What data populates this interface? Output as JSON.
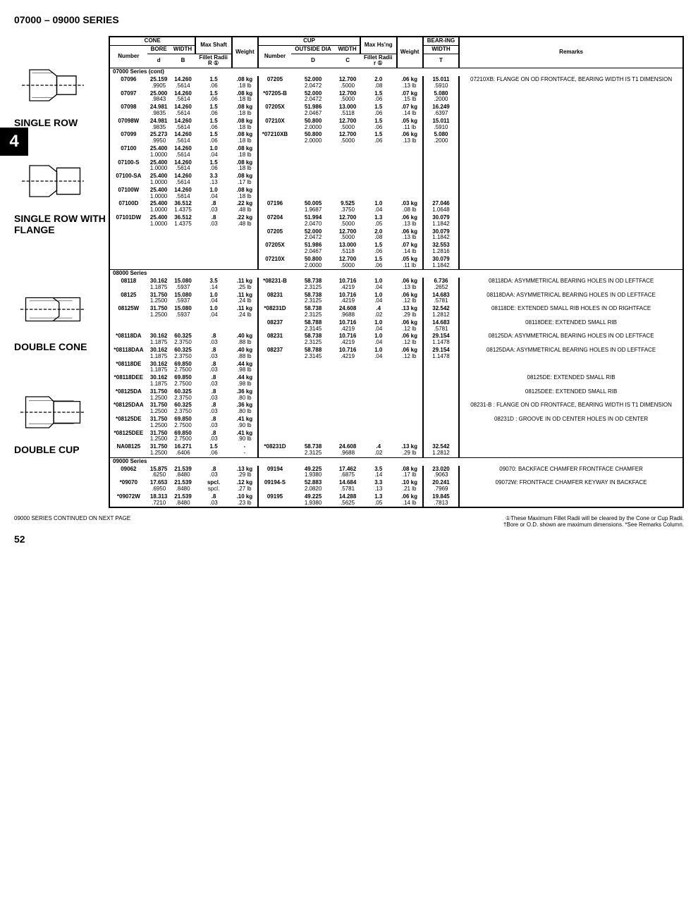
{
  "page": {
    "series_title": "07000 – 09000 SERIES",
    "tab_number": "4",
    "footer_left": "09000 SERIES CONTINUED ON NEXT PAGE",
    "footer_right": "①These Maximum Fillet Radii will be cleared by the Cone or Cup Radii.\n†Bore or O.D. shown are maximum dimensions.   *See Remarks Column.",
    "page_number": "52"
  },
  "sections": [
    {
      "label": "SINGLE ROW"
    },
    {
      "label": "SINGLE ROW WITH FLANGE"
    },
    {
      "label": "DOUBLE CONE"
    },
    {
      "label": "DOUBLE CUP"
    }
  ],
  "header": {
    "cone": "CONE",
    "cup": "CUP",
    "bear": "BEAR-ING",
    "remarks": "Remarks",
    "number": "Number",
    "bore": "BORE",
    "width": "WIDTH",
    "max_shaft": "Max Shaft",
    "fillet_radii": "Fillet Radii",
    "weight": "Weight",
    "outside_dia": "OUTSIDE DIA",
    "max_hsng": "Max Hs'ng",
    "d": "d",
    "B": "B",
    "R": "R ①",
    "D": "D",
    "C": "C",
    "r": "r ①",
    "T": "T"
  },
  "groups": [
    {
      "title": "07000 Series (cont)",
      "rows": [
        {
          "num": "07096",
          "d": "25.159",
          "d2": ".9905",
          "B": "14.260",
          "B2": ".5614",
          "R": "1.5",
          "R2": ".06",
          "w": ".08 kg",
          "w2": ".18 lb",
          "cup": "07205",
          "D": "52.000",
          "D2": "2.0472",
          "C": "12.700",
          "C2": ".5000",
          "r": "2.0",
          "r2": ".08",
          "cw": ".06 kg",
          "cw2": ".13 lb",
          "T": "15.011",
          "T2": ".5910",
          "rem": "07210XB: FLANGE ON OD FRONTFACE, BEARING WIDTH IS T1 DIMENSION"
        },
        {
          "num": "07097",
          "d": "25.000",
          "d2": ".9843",
          "B": "14.260",
          "B2": ".5614",
          "R": "1.5",
          "R2": ".06",
          "w": ".08 kg",
          "w2": ".18 lb",
          "cup": "*07205-B",
          "D": "52.000",
          "D2": "2.0472",
          "C": "12.700",
          "C2": ".5000",
          "r": "1.5",
          "r2": ".06",
          "cw": ".07 kg",
          "cw2": ".15 lb",
          "T": "5.080",
          "T2": ".2000",
          "rem": ""
        },
        {
          "num": "07098",
          "d": "24.981",
          "d2": ".9835",
          "B": "14.260",
          "B2": ".5614",
          "R": "1.5",
          "R2": ".06",
          "w": ".08 kg",
          "w2": ".18 lb",
          "cup": "07205X",
          "D": "51.986",
          "D2": "2.0467",
          "C": "13.000",
          "C2": ".5118",
          "r": "1.5",
          "r2": ".06",
          "cw": ".07 kg",
          "cw2": ".14 lb",
          "T": "16.249",
          "T2": ".6397",
          "rem": ""
        },
        {
          "num": "07098W",
          "d": "24.981",
          "d2": ".9835",
          "B": "14.260",
          "B2": ".5614",
          "R": "1.5",
          "R2": ".06",
          "w": ".08 kg",
          "w2": ".18 lb",
          "cup": "07210X",
          "D": "50.800",
          "D2": "2.0000",
          "C": "12.700",
          "C2": ".5000",
          "r": "1.5",
          "r2": ".06",
          "cw": ".05 kg",
          "cw2": ".11 lb",
          "T": "15.011",
          "T2": ".5910",
          "rem": ""
        },
        {
          "num": "07099",
          "d": "25.273",
          "d2": ".9950",
          "B": "14.260",
          "B2": ".5614",
          "R": "1.5",
          "R2": ".06",
          "w": ".08 kg",
          "w2": ".18 lb",
          "cup": "*07210XB",
          "D": "50.800",
          "D2": "2.0000",
          "C": "12.700",
          "C2": ".5000",
          "r": "1.5",
          "r2": ".06",
          "cw": ".06 kg",
          "cw2": ".13 lb",
          "T": "5.080",
          "T2": ".2000",
          "rem": ""
        },
        {
          "num": "07100",
          "d": "25.400",
          "d2": "1.0000",
          "B": "14.260",
          "B2": ".5614",
          "R": "1.0",
          "R2": ".04",
          "w": ".08 kg",
          "w2": ".18 lb",
          "cup": "",
          "D": "",
          "D2": "",
          "C": "",
          "C2": "",
          "r": "",
          "r2": "",
          "cw": "",
          "cw2": "",
          "T": "",
          "T2": "",
          "rem": ""
        },
        {
          "num": "07100-S",
          "d": "25.400",
          "d2": "1.0000",
          "B": "14.260",
          "B2": ".5614",
          "R": "1.5",
          "R2": ".06",
          "w": ".08 kg",
          "w2": ".18 lb",
          "cup": "",
          "D": "",
          "D2": "",
          "C": "",
          "C2": "",
          "r": "",
          "r2": "",
          "cw": "",
          "cw2": "",
          "T": "",
          "T2": "",
          "rem": ""
        },
        {
          "num": "07100-SA",
          "d": "25.400",
          "d2": "1.0000",
          "B": "14.260",
          "B2": ".5614",
          "R": "3.3",
          "R2": ".13",
          "w": ".08 kg",
          "w2": ".17 lb",
          "cup": "",
          "D": "",
          "D2": "",
          "C": "",
          "C2": "",
          "r": "",
          "r2": "",
          "cw": "",
          "cw2": "",
          "T": "",
          "T2": "",
          "rem": ""
        },
        {
          "num": "07100W",
          "d": "25.400",
          "d2": "1.0000",
          "B": "14.260",
          "B2": ".5614",
          "R": "1.0",
          "R2": ".04",
          "w": ".08 kg",
          "w2": ".18 lb",
          "cup": "",
          "D": "",
          "D2": "",
          "C": "",
          "C2": "",
          "r": "",
          "r2": "",
          "cw": "",
          "cw2": "",
          "T": "",
          "T2": "",
          "rem": ""
        },
        {
          "num": "07100D",
          "d": "25.400",
          "d2": "1.0000",
          "B": "36.512",
          "B2": "1.4375",
          "R": ".8",
          "R2": ".03",
          "w": ".22 kg",
          "w2": ".48 lb",
          "cup": "07196",
          "D": "50.005",
          "D2": "1.9687",
          "C": "9.525",
          "C2": ".3750",
          "r": "1.0",
          "r2": ".04",
          "cw": ".03 kg",
          "cw2": ".08 lb",
          "T": "27.046",
          "T2": "1.0648",
          "rem": ""
        },
        {
          "num": "07101DW",
          "d": "25.400",
          "d2": "1.0000",
          "B": "36.512",
          "B2": "1.4375",
          "R": ".8",
          "R2": ".03",
          "w": ".22 kg",
          "w2": ".48 lb",
          "cup": "07204",
          "D": "51.994",
          "D2": "2.0470",
          "C": "12.700",
          "C2": ".5000",
          "r": "1.3",
          "r2": ".05",
          "cw": ".06 kg",
          "cw2": ".13 lb",
          "T": "30.079",
          "T2": "1.1842",
          "rem": ""
        },
        {
          "num": "",
          "d": "",
          "d2": "",
          "B": "",
          "B2": "",
          "R": "",
          "R2": "",
          "w": "",
          "w2": "",
          "cup": "07205",
          "D": "52.000",
          "D2": "2.0472",
          "C": "12.700",
          "C2": ".5000",
          "r": "2.0",
          "r2": ".08",
          "cw": ".06 kg",
          "cw2": ".13 lb",
          "T": "30.079",
          "T2": "1.1842",
          "rem": ""
        },
        {
          "num": "",
          "d": "",
          "d2": "",
          "B": "",
          "B2": "",
          "R": "",
          "R2": "",
          "w": "",
          "w2": "",
          "cup": "07205X",
          "D": "51.986",
          "D2": "2.0467",
          "C": "13.000",
          "C2": ".5118",
          "r": "1.5",
          "r2": ".06",
          "cw": ".07 kg",
          "cw2": ".14 lb",
          "T": "32.553",
          "T2": "1.2816",
          "rem": ""
        },
        {
          "num": "",
          "d": "",
          "d2": "",
          "B": "",
          "B2": "",
          "R": "",
          "R2": "",
          "w": "",
          "w2": "",
          "cup": "07210X",
          "D": "50.800",
          "D2": "2.0000",
          "C": "12.700",
          "C2": ".5000",
          "r": "1.5",
          "r2": ".06",
          "cw": ".05 kg",
          "cw2": ".11 lb",
          "T": "30.079",
          "T2": "1.1842",
          "rem": ""
        }
      ]
    },
    {
      "title": "08000 Series",
      "rows": [
        {
          "num": "08118",
          "d": "30.162",
          "d2": "1.1875",
          "B": "15.080",
          "B2": ".5937",
          "R": "3.5",
          "R2": ".14",
          "w": ".11 kg",
          "w2": ".25 lb",
          "cup": "*08231-B",
          "D": "58.738",
          "D2": "2.3125",
          "C": "10.716",
          "C2": ".4219",
          "r": "1.0",
          "r2": ".04",
          "cw": ".06 kg",
          "cw2": ".13 lb",
          "T": "6.736",
          "T2": ".2652",
          "rem": "08118DA: ASYMMETRICAL BEARING HOLES IN OD LEFTFACE"
        },
        {
          "num": "08125",
          "d": "31.750",
          "d2": "1.2500",
          "B": "15.080",
          "B2": ".5937",
          "R": "1.0",
          "R2": ".04",
          "w": ".11 kg",
          "w2": ".24 lb",
          "cup": "08231",
          "D": "58.738",
          "D2": "2.3125",
          "C": "10.716",
          "C2": ".4219",
          "r": "1.0",
          "r2": ".04",
          "cw": ".06 kg",
          "cw2": ".12 lb",
          "T": "14.683",
          "T2": ".5781",
          "rem": "08118DAA: ASYMMETRICAL BEARING HOLES IN OD LEFTFACE"
        },
        {
          "num": "08125W",
          "d": "31.750",
          "d2": "1.2500",
          "B": "15.080",
          "B2": ".5937",
          "R": "1.0",
          "R2": ".04",
          "w": ".11 kg",
          "w2": ".24 lb",
          "cup": "*08231D",
          "D": "58.738",
          "D2": "2.3125",
          "C": "24.608",
          "C2": ".9688",
          "r": ".4",
          "r2": ".02",
          "cw": ".13 kg",
          "cw2": ".29 lb",
          "T": "32.542",
          "T2": "1.2812",
          "rem": "08118DE: EXTENDED SMALL RIB HOLES IN OD RIGHTFACE"
        },
        {
          "num": "",
          "d": "",
          "d2": "",
          "B": "",
          "B2": "",
          "R": "",
          "R2": "",
          "w": "",
          "w2": "",
          "cup": "08237",
          "D": "58.788",
          "D2": "2.3145",
          "C": "10.716",
          "C2": ".4219",
          "r": "1.0",
          "r2": ".04",
          "cw": ".06 kg",
          "cw2": ".12 lb",
          "T": "14.683",
          "T2": ".5781",
          "rem": "08118DEE: EXTENDED SMALL RIB"
        },
        {
          "num": "*08118DA",
          "d": "30.162",
          "d2": "1.1875",
          "B": "60.325",
          "B2": "2.3750",
          "R": ".8",
          "R2": ".03",
          "w": ".40 kg",
          "w2": ".88 lb",
          "cup": "08231",
          "D": "58.738",
          "D2": "2.3125",
          "C": "10.716",
          "C2": ".4219",
          "r": "1.0",
          "r2": ".04",
          "cw": ".06 kg",
          "cw2": ".12 lb",
          "T": "29.154",
          "T2": "1.1478",
          "rem": "08125DA: ASYMMETRICAL BEARING HOLES IN OD LEFTFACE"
        },
        {
          "num": "*08118DAA",
          "d": "30.162",
          "d2": "1.1875",
          "B": "60.325",
          "B2": "2.3750",
          "R": ".8",
          "R2": ".03",
          "w": ".40 kg",
          "w2": ".88 lb",
          "cup": "08237",
          "D": "58.788",
          "D2": "2.3145",
          "C": "10.716",
          "C2": ".4219",
          "r": "1.0",
          "r2": ".04",
          "cw": ".06 kg",
          "cw2": ".12 lb",
          "T": "29.154",
          "T2": "1.1478",
          "rem": "08125DAA: ASYMMETRICAL BEARING HOLES IN OD LEFTFACE"
        },
        {
          "num": "*08118DE",
          "d": "30.162",
          "d2": "1.1875",
          "B": "69.850",
          "B2": "2.7500",
          "R": ".8",
          "R2": ".03",
          "w": ".44 kg",
          "w2": ".98 lb",
          "cup": "",
          "D": "",
          "D2": "",
          "C": "",
          "C2": "",
          "r": "",
          "r2": "",
          "cw": "",
          "cw2": "",
          "T": "",
          "T2": "",
          "rem": ""
        },
        {
          "num": "*08118DEE",
          "d": "30.162",
          "d2": "1.1875",
          "B": "69.850",
          "B2": "2.7500",
          "R": ".8",
          "R2": ".03",
          "w": ".44 kg",
          "w2": ".98 lb",
          "cup": "",
          "D": "",
          "D2": "",
          "C": "",
          "C2": "",
          "r": "",
          "r2": "",
          "cw": "",
          "cw2": "",
          "T": "",
          "T2": "",
          "rem": "08125DE: EXTENDED SMALL RIB"
        },
        {
          "num": "*08125DA",
          "d": "31.750",
          "d2": "1.2500",
          "B": "60.325",
          "B2": "2.3750",
          "R": ".8",
          "R2": ".03",
          "w": ".36 kg",
          "w2": ".80 lb",
          "cup": "",
          "D": "",
          "D2": "",
          "C": "",
          "C2": "",
          "r": "",
          "r2": "",
          "cw": "",
          "cw2": "",
          "T": "",
          "T2": "",
          "rem": "08125DEE: EXTENDED SMALL RIB"
        },
        {
          "num": "*08125DAA",
          "d": "31.750",
          "d2": "1.2500",
          "B": "60.325",
          "B2": "2.3750",
          "R": ".8",
          "R2": ".03",
          "w": ".36 kg",
          "w2": ".80 lb",
          "cup": "",
          "D": "",
          "D2": "",
          "C": "",
          "C2": "",
          "r": "",
          "r2": "",
          "cw": "",
          "cw2": "",
          "T": "",
          "T2": "",
          "rem": "08231-B : FLANGE ON OD FRONTFACE, BEARING WIDTH IS T1 DIMENSION"
        },
        {
          "num": "*08125DE",
          "d": "31.750",
          "d2": "1.2500",
          "B": "69.850",
          "B2": "2.7500",
          "R": ".8",
          "R2": ".03",
          "w": ".41 kg",
          "w2": ".90 lb",
          "cup": "",
          "D": "",
          "D2": "",
          "C": "",
          "C2": "",
          "r": "",
          "r2": "",
          "cw": "",
          "cw2": "",
          "T": "",
          "T2": "",
          "rem": "08231D : GROOVE IN OD CENTER HOLES IN OD CENTER"
        },
        {
          "num": "*08125DEE",
          "d": "31.750",
          "d2": "1.2500",
          "B": "69.850",
          "B2": "2.7500",
          "R": ".8",
          "R2": ".03",
          "w": ".41 kg",
          "w2": ".90 lb",
          "cup": "",
          "D": "",
          "D2": "",
          "C": "",
          "C2": "",
          "r": "",
          "r2": "",
          "cw": "",
          "cw2": "",
          "T": "",
          "T2": "",
          "rem": ""
        },
        {
          "num": "NA08125",
          "d": "31.750",
          "d2": "1.2500",
          "B": "16.271",
          "B2": ".6406",
          "R": "1.5",
          "R2": ".06",
          "w": "-",
          "w2": "-",
          "cup": "*08231D",
          "D": "58.738",
          "D2": "2.3125",
          "C": "24.608",
          "C2": ".9688",
          "r": ".4",
          "r2": ".02",
          "cw": ".13 kg",
          "cw2": ".29 lb",
          "T": "32.542",
          "T2": "1.2812",
          "rem": ""
        }
      ]
    },
    {
      "title": "09000 Series",
      "rows": [
        {
          "num": "09062",
          "d": "15.875",
          "d2": ".6250",
          "B": "21.539",
          "B2": ".8480",
          "R": ".8",
          "R2": ".03",
          "w": ".13 kg",
          "w2": ".29 lb",
          "cup": "09194",
          "D": "49.225",
          "D2": "1.9380",
          "C": "17.462",
          "C2": ".6875",
          "r": "3.5",
          "r2": ".14",
          "cw": ".08 kg",
          "cw2": ".17 lb",
          "T": "23.020",
          "T2": ".9063",
          "rem": "09070: BACKFACE CHAMFER FRONTFACE CHAMFER"
        },
        {
          "num": "*09070",
          "d": "17.653",
          "d2": ".6950",
          "B": "21.539",
          "B2": ".8480",
          "R": "spcl.",
          "R2": "spcl.",
          "w": ".12 kg",
          "w2": ".27 lb",
          "cup": "09194-S",
          "D": "52.883",
          "D2": "2.0820",
          "C": "14.684",
          "C2": ".5781",
          "r": "3.3",
          "r2": ".13",
          "cw": ".10 kg",
          "cw2": ".21 lb",
          "T": "20.241",
          "T2": ".7969",
          "rem": "09072W: FRONTFACE CHAMFER KEYWAY IN BACKFACE"
        },
        {
          "num": "*09072W",
          "d": "18.313",
          "d2": ".7210",
          "B": "21.539",
          "B2": ".8480",
          "R": ".8",
          "R2": ".03",
          "w": ".10 kg",
          "w2": ".23 lb",
          "cup": "09195",
          "D": "49.225",
          "D2": "1.9380",
          "C": "14.288",
          "C2": ".5625",
          "r": "1.3",
          "r2": ".05",
          "cw": ".06 kg",
          "cw2": ".14 lb",
          "T": "19.845",
          "T2": ".7813",
          "rem": ""
        }
      ]
    }
  ]
}
